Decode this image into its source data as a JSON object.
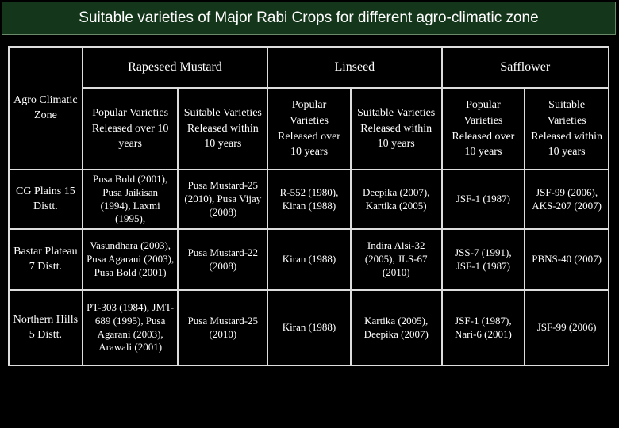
{
  "header": {
    "title": "Suitable varieties of Major Rabi Crops for different agro-climatic zone"
  },
  "table": {
    "corner": "Agro Climatic Zone",
    "groups": [
      "Rapeseed Mustard",
      "Linseed",
      "Safflower"
    ],
    "subheaders": [
      "Popular Varieties Released over 10 years",
      "Suitable Varieties Released within 10 years",
      "Popular Varieties Released over 10 years",
      "Suitable Varieties Released within 10 years",
      "Popular Varieties Released over 10 years",
      "Suitable Varieties Released within 10 years"
    ],
    "rows": [
      [
        "CG Plains 15 Distt.",
        "Pusa Bold (2001), Pusa Jaikisan (1994), Laxmi (1995),",
        "Pusa Mustard-25 (2010), Pusa Vijay (2008)",
        "R-552 (1980), Kiran (1988)",
        "Deepika (2007), Kartika (2005)",
        "JSF-1 (1987)",
        "JSF-99 (2006), AKS-207 (2007)"
      ],
      [
        "Bastar Plateau 7 Distt.",
        "Vasundhara (2003), Pusa Agarani (2003), Pusa Bold (2001)",
        "Pusa Mustard-22 (2008)",
        "Kiran (1988)",
        "Indira Alsi-32 (2005), JLS-67 (2010)",
        "JSS-7 (1991), JSF-1 (1987)",
        "PBNS-40 (2007)"
      ],
      [
        "Northern Hills 5 Distt.",
        "PT-303 (1984), JMT-689 (1995), Pusa Agarani (2003), Arawali (2001)",
        "Pusa Mustard-25 (2010)",
        "Kiran (1988)",
        "Kartika (2005), Deepika (2007)",
        "JSF-1 (1987), Nari-6 (2001)",
        "JSF-99 (2006)"
      ]
    ]
  }
}
